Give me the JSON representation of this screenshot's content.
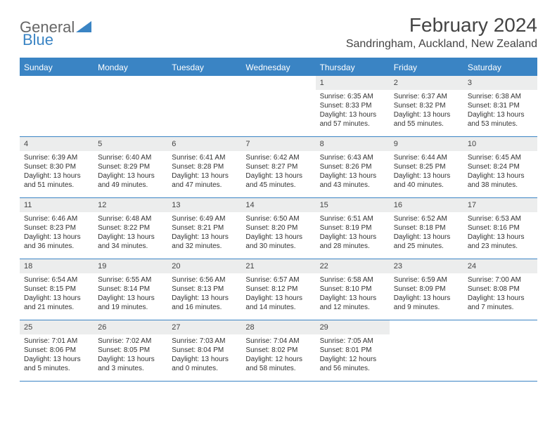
{
  "brand": {
    "part1": "General",
    "part2": "Blue"
  },
  "title": "February 2024",
  "location": "Sandringham, Auckland, New Zealand",
  "colors": {
    "accent": "#3a84c4",
    "header_bg": "#3a84c4",
    "daynum_bg": "#eceded",
    "text": "#333333",
    "bg": "#ffffff"
  },
  "days_of_week": [
    "Sunday",
    "Monday",
    "Tuesday",
    "Wednesday",
    "Thursday",
    "Friday",
    "Saturday"
  ],
  "weeks": [
    [
      {
        "n": "",
        "sr": "",
        "ss": "",
        "dl": ""
      },
      {
        "n": "",
        "sr": "",
        "ss": "",
        "dl": ""
      },
      {
        "n": "",
        "sr": "",
        "ss": "",
        "dl": ""
      },
      {
        "n": "",
        "sr": "",
        "ss": "",
        "dl": ""
      },
      {
        "n": "1",
        "sr": "Sunrise: 6:35 AM",
        "ss": "Sunset: 8:33 PM",
        "dl": "Daylight: 13 hours and 57 minutes."
      },
      {
        "n": "2",
        "sr": "Sunrise: 6:37 AM",
        "ss": "Sunset: 8:32 PM",
        "dl": "Daylight: 13 hours and 55 minutes."
      },
      {
        "n": "3",
        "sr": "Sunrise: 6:38 AM",
        "ss": "Sunset: 8:31 PM",
        "dl": "Daylight: 13 hours and 53 minutes."
      }
    ],
    [
      {
        "n": "4",
        "sr": "Sunrise: 6:39 AM",
        "ss": "Sunset: 8:30 PM",
        "dl": "Daylight: 13 hours and 51 minutes."
      },
      {
        "n": "5",
        "sr": "Sunrise: 6:40 AM",
        "ss": "Sunset: 8:29 PM",
        "dl": "Daylight: 13 hours and 49 minutes."
      },
      {
        "n": "6",
        "sr": "Sunrise: 6:41 AM",
        "ss": "Sunset: 8:28 PM",
        "dl": "Daylight: 13 hours and 47 minutes."
      },
      {
        "n": "7",
        "sr": "Sunrise: 6:42 AM",
        "ss": "Sunset: 8:27 PM",
        "dl": "Daylight: 13 hours and 45 minutes."
      },
      {
        "n": "8",
        "sr": "Sunrise: 6:43 AM",
        "ss": "Sunset: 8:26 PM",
        "dl": "Daylight: 13 hours and 43 minutes."
      },
      {
        "n": "9",
        "sr": "Sunrise: 6:44 AM",
        "ss": "Sunset: 8:25 PM",
        "dl": "Daylight: 13 hours and 40 minutes."
      },
      {
        "n": "10",
        "sr": "Sunrise: 6:45 AM",
        "ss": "Sunset: 8:24 PM",
        "dl": "Daylight: 13 hours and 38 minutes."
      }
    ],
    [
      {
        "n": "11",
        "sr": "Sunrise: 6:46 AM",
        "ss": "Sunset: 8:23 PM",
        "dl": "Daylight: 13 hours and 36 minutes."
      },
      {
        "n": "12",
        "sr": "Sunrise: 6:48 AM",
        "ss": "Sunset: 8:22 PM",
        "dl": "Daylight: 13 hours and 34 minutes."
      },
      {
        "n": "13",
        "sr": "Sunrise: 6:49 AM",
        "ss": "Sunset: 8:21 PM",
        "dl": "Daylight: 13 hours and 32 minutes."
      },
      {
        "n": "14",
        "sr": "Sunrise: 6:50 AM",
        "ss": "Sunset: 8:20 PM",
        "dl": "Daylight: 13 hours and 30 minutes."
      },
      {
        "n": "15",
        "sr": "Sunrise: 6:51 AM",
        "ss": "Sunset: 8:19 PM",
        "dl": "Daylight: 13 hours and 28 minutes."
      },
      {
        "n": "16",
        "sr": "Sunrise: 6:52 AM",
        "ss": "Sunset: 8:18 PM",
        "dl": "Daylight: 13 hours and 25 minutes."
      },
      {
        "n": "17",
        "sr": "Sunrise: 6:53 AM",
        "ss": "Sunset: 8:16 PM",
        "dl": "Daylight: 13 hours and 23 minutes."
      }
    ],
    [
      {
        "n": "18",
        "sr": "Sunrise: 6:54 AM",
        "ss": "Sunset: 8:15 PM",
        "dl": "Daylight: 13 hours and 21 minutes."
      },
      {
        "n": "19",
        "sr": "Sunrise: 6:55 AM",
        "ss": "Sunset: 8:14 PM",
        "dl": "Daylight: 13 hours and 19 minutes."
      },
      {
        "n": "20",
        "sr": "Sunrise: 6:56 AM",
        "ss": "Sunset: 8:13 PM",
        "dl": "Daylight: 13 hours and 16 minutes."
      },
      {
        "n": "21",
        "sr": "Sunrise: 6:57 AM",
        "ss": "Sunset: 8:12 PM",
        "dl": "Daylight: 13 hours and 14 minutes."
      },
      {
        "n": "22",
        "sr": "Sunrise: 6:58 AM",
        "ss": "Sunset: 8:10 PM",
        "dl": "Daylight: 13 hours and 12 minutes."
      },
      {
        "n": "23",
        "sr": "Sunrise: 6:59 AM",
        "ss": "Sunset: 8:09 PM",
        "dl": "Daylight: 13 hours and 9 minutes."
      },
      {
        "n": "24",
        "sr": "Sunrise: 7:00 AM",
        "ss": "Sunset: 8:08 PM",
        "dl": "Daylight: 13 hours and 7 minutes."
      }
    ],
    [
      {
        "n": "25",
        "sr": "Sunrise: 7:01 AM",
        "ss": "Sunset: 8:06 PM",
        "dl": "Daylight: 13 hours and 5 minutes."
      },
      {
        "n": "26",
        "sr": "Sunrise: 7:02 AM",
        "ss": "Sunset: 8:05 PM",
        "dl": "Daylight: 13 hours and 3 minutes."
      },
      {
        "n": "27",
        "sr": "Sunrise: 7:03 AM",
        "ss": "Sunset: 8:04 PM",
        "dl": "Daylight: 13 hours and 0 minutes."
      },
      {
        "n": "28",
        "sr": "Sunrise: 7:04 AM",
        "ss": "Sunset: 8:02 PM",
        "dl": "Daylight: 12 hours and 58 minutes."
      },
      {
        "n": "29",
        "sr": "Sunrise: 7:05 AM",
        "ss": "Sunset: 8:01 PM",
        "dl": "Daylight: 12 hours and 56 minutes."
      },
      {
        "n": "",
        "sr": "",
        "ss": "",
        "dl": ""
      },
      {
        "n": "",
        "sr": "",
        "ss": "",
        "dl": ""
      }
    ]
  ]
}
